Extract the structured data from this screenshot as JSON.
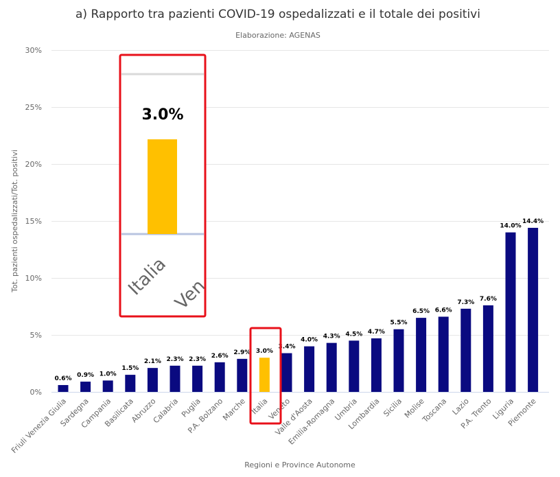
{
  "chart_data": {
    "type": "bar",
    "title": "a) Rapporto tra pazienti COVID-19 ospedalizzati e il totale dei positivi",
    "subtitle": "Elaborazione: AGENAS",
    "xlabel": "Regioni e Province Autonome",
    "ylabel": "Tot. pazienti ospedalizzati/Tot. positivi",
    "ylim": [
      0,
      30
    ],
    "yticks": [
      "0%",
      "5%",
      "10%",
      "15%",
      "20%",
      "25%",
      "30%"
    ],
    "grid": true,
    "categories": [
      "Friuli Venezia Giulia",
      "Sardegna",
      "Campania",
      "Basilicata",
      "Abruzzo",
      "Calabria",
      "Puglia",
      "P.A. Bolzano",
      "Marche",
      "Italia",
      "Veneto",
      "Valle d'Aosta",
      "Emilia-Romagna",
      "Umbria",
      "Lombardia",
      "Sicilia",
      "Molise",
      "Toscana",
      "Lazio",
      "P.A. Trento",
      "Liguria",
      "Piemonte"
    ],
    "values": [
      0.6,
      0.9,
      1.0,
      1.5,
      2.1,
      2.3,
      2.3,
      2.6,
      2.9,
      3.0,
      3.4,
      4.0,
      4.3,
      4.5,
      4.7,
      5.5,
      6.5,
      6.6,
      7.3,
      7.6,
      14.0,
      14.4
    ],
    "data_labels": [
      "0.6%",
      "0.9%",
      "1.0%",
      "1.5%",
      "2.1%",
      "2.3%",
      "2.3%",
      "2.6%",
      "2.9%",
      "3.0%",
      "3.4%",
      "4.0%",
      "4.3%",
      "4.5%",
      "4.7%",
      "5.5%",
      "6.5%",
      "6.6%",
      "7.3%",
      "7.6%",
      "14.0%",
      "14.4%"
    ],
    "colors": {
      "default": "#0a0a80",
      "highlight": "#ffc000",
      "annotation": "#e8101a"
    },
    "highlight_category": "Italia",
    "zoom_inset": {
      "label": "3.0%",
      "tick_main": "Italia",
      "tick_partial": "Ven"
    }
  }
}
